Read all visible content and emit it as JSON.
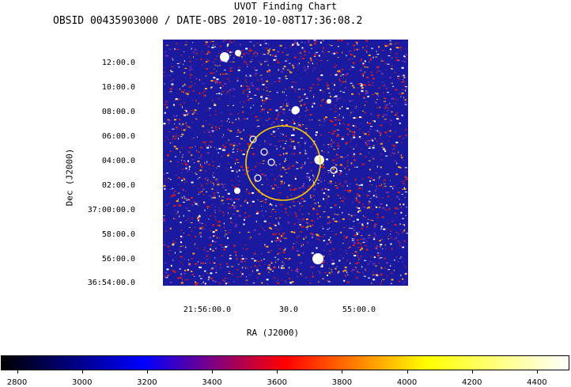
{
  "chart_data": {
    "type": "heatmap",
    "title": "UVOT Finding Chart",
    "subtitle": "OBSID 00435903000 / DATE-OBS 2010-10-08T17:36:08.2",
    "xlabel": "RA (J2000)",
    "ylabel": "Dec (J2000)",
    "x_ticks": [
      "21:56:00.0",
      "30.0",
      "55:00.0"
    ],
    "y_ticks": [
      "12:00.0",
      "10:00.0",
      "08:00.0",
      "06:00.0",
      "04:00.0",
      "02:00.0",
      "37:00:00.0",
      "58:00.0",
      "56:00.0",
      "36:54:00.0"
    ],
    "colorbar": {
      "min": 2750,
      "max": 4500,
      "ticks": [
        2800,
        3000,
        3200,
        3400,
        3600,
        3800,
        4000,
        4200,
        4400
      ],
      "stops": [
        "#000000",
        "#0000ff",
        "#ff0000",
        "#ffff00",
        "#ffffff"
      ]
    },
    "error_circle_color": "#ffcc00",
    "source_marker_color": "#ffffff",
    "image_colors": {
      "background": "#1a1aa0",
      "speckle_red": "#d81c1c",
      "speckle_white": "#ffffff",
      "speckle_orange": "#ffa51e"
    }
  }
}
